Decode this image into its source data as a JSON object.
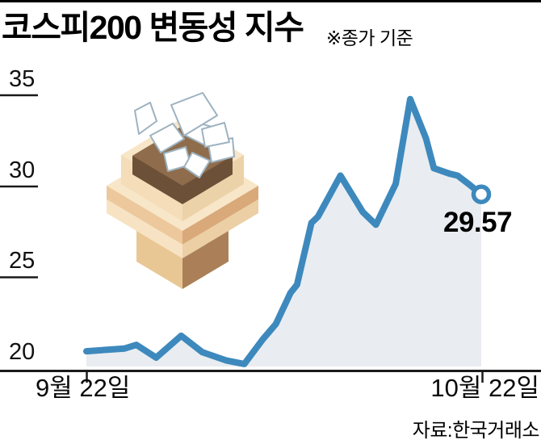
{
  "header": {
    "title": "코스피200 변동성 지수",
    "note": "※종가 기준"
  },
  "chart_data": {
    "type": "area",
    "title": "코스피200 변동성 지수",
    "subtitle_note": "※종가 기준",
    "series_name": "코스피200 변동성 지수(종가)",
    "y_ticks": [
      35,
      30,
      25,
      20
    ],
    "y_tick_labels": [
      "35",
      "30",
      "25",
      "20"
    ],
    "ylim": [
      20,
      35.8
    ],
    "x_domain_days": [
      0,
      30
    ],
    "x_tick_labels": [
      "9월 22일",
      "10월 22일"
    ],
    "grid": "short left tick dashes only, baseline = 20",
    "legend": "none",
    "points_day_value": [
      [
        0,
        20.95
      ],
      [
        2.9,
        21.1
      ],
      [
        3.8,
        21.3
      ],
      [
        5.3,
        20.6
      ],
      [
        7.2,
        21.8
      ],
      [
        8.8,
        20.9
      ],
      [
        10.6,
        20.45
      ],
      [
        12.0,
        20.25
      ],
      [
        13.4,
        21.6
      ],
      [
        14.4,
        22.45
      ],
      [
        15.5,
        24.15
      ],
      [
        16.0,
        24.6
      ],
      [
        17.1,
        28.0
      ],
      [
        17.6,
        28.35
      ],
      [
        19.3,
        30.6
      ],
      [
        21.0,
        28.6
      ],
      [
        22.0,
        27.9
      ],
      [
        23.5,
        30.15
      ],
      [
        24.6,
        34.8
      ],
      [
        25.8,
        32.65
      ],
      [
        26.4,
        31.0
      ],
      [
        27.6,
        30.7
      ],
      [
        28.2,
        30.6
      ],
      [
        29.1,
        30.1
      ],
      [
        30,
        29.57
      ]
    ],
    "end_value": 29.57,
    "end_label": "29.57",
    "marker": "open-circle at last point",
    "line_color": "#3d89bd",
    "area_fill_color": "#e9edf1",
    "axis_color": "#1a1a1a"
  },
  "footer": {
    "source": "자료:한국거래소"
  },
  "illustration": {
    "name": "ballot-box-with-papers",
    "colors": {
      "cream": "#f8e6c8",
      "creamL": "#f4ddb8",
      "creamR": "#ecd2a9",
      "brownDark": "#6d5038",
      "brownMid": "#8f6d4c",
      "bandTopL": "#ecc89c",
      "bandTopR": "#d9a97a",
      "bandBotL": "#f7e3c3",
      "bandBotR": "#eccfa4",
      "cubeL": "#e9c794",
      "cubeR": "#ab8058",
      "paper": "#ffffff",
      "paperEdge": "#9db2c0"
    }
  }
}
